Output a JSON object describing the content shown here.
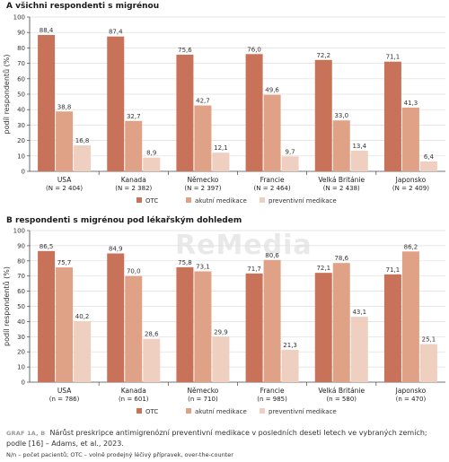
{
  "colors": {
    "otc": "#c8725a",
    "acute": "#dfa286",
    "preventive": "#efcfbf",
    "grid": "#dedede",
    "axis": "#444444",
    "watermark": "#e9e9e9"
  },
  "watermark": "ReMedia",
  "caption": {
    "label": "GRAF 1A, B",
    "text": "Nárůst preskripce antimigrenózní preventivní medikace v posledních deseti letech ve vybraných zemích; podle [16] – Adams, et al., 2023.",
    "note": "N/n – počet pacientů; OTC – volně prodejný léčivý přípravek, over-the-counter"
  },
  "chart_data": [
    {
      "type": "bar",
      "title": "A  všichni respondenti s migrénou",
      "ylabel": "podíl respondentů (%)",
      "xlabel": "",
      "ylim": [
        0,
        100
      ],
      "yticks": [
        0,
        10,
        20,
        30,
        40,
        50,
        60,
        70,
        80,
        90,
        100
      ],
      "grid": true,
      "legend_position": "bottom",
      "categories": [
        "USA",
        "Kanada",
        "Německo",
        "Francie",
        "Velká Británie",
        "Japonsko"
      ],
      "sublabels": [
        "(N = 2 404)",
        "(N = 2 382)",
        "(N = 2 397)",
        "(N = 2 464)",
        "(N = 2 438)",
        "(N = 2 409)"
      ],
      "series": [
        {
          "name": "OTC",
          "values": [
            88.4,
            87.4,
            75.6,
            76.0,
            72.2,
            71.1
          ],
          "labels": [
            "88,4",
            "87,4",
            "75,6",
            "76,0",
            "72,2",
            "71,1"
          ]
        },
        {
          "name": "akutní medikace",
          "values": [
            38.8,
            32.7,
            42.7,
            49.6,
            33.0,
            41.3
          ],
          "labels": [
            "38,8",
            "32,7",
            "42,7",
            "49,6",
            "33,0",
            "41,3"
          ]
        },
        {
          "name": "preventivní medikace",
          "values": [
            16.8,
            8.9,
            12.1,
            9.7,
            13.4,
            6.4
          ],
          "labels": [
            "16,8",
            "8,9",
            "12,1",
            "9,7",
            "13,4",
            "6,4"
          ]
        }
      ]
    },
    {
      "type": "bar",
      "title": "B  respondenti s migrénou pod lékařským dohledem",
      "ylabel": "podíl respondentů (%)",
      "xlabel": "",
      "ylim": [
        0,
        100
      ],
      "yticks": [
        0,
        10,
        20,
        30,
        40,
        50,
        60,
        70,
        80,
        90,
        100
      ],
      "grid": true,
      "legend_position": "bottom",
      "categories": [
        "USA",
        "Kanada",
        "Německo",
        "Francie",
        "Velká Británie",
        "Japonsko"
      ],
      "sublabels": [
        "(n = 786)",
        "(n = 601)",
        "(n = 710)",
        "(n = 985)",
        "(n = 580)",
        "(n = 470)"
      ],
      "series": [
        {
          "name": "OTC",
          "values": [
            86.5,
            84.9,
            75.8,
            71.7,
            72.1,
            71.1
          ],
          "labels": [
            "86,5",
            "84,9",
            "75,8",
            "71,7",
            "72,1",
            "71,1"
          ]
        },
        {
          "name": "akutní medikace",
          "values": [
            75.7,
            70.0,
            73.1,
            80.6,
            78.6,
            86.2
          ],
          "labels": [
            "75,7",
            "70,0",
            "73,1",
            "80,6",
            "78,6",
            "86,2"
          ]
        },
        {
          "name": "preventivní medikace",
          "values": [
            40.2,
            28.6,
            29.9,
            21.3,
            43.1,
            25.1
          ],
          "labels": [
            "40,2",
            "28,6",
            "29,9",
            "21,3",
            "43,1",
            "25,1"
          ]
        }
      ]
    }
  ]
}
